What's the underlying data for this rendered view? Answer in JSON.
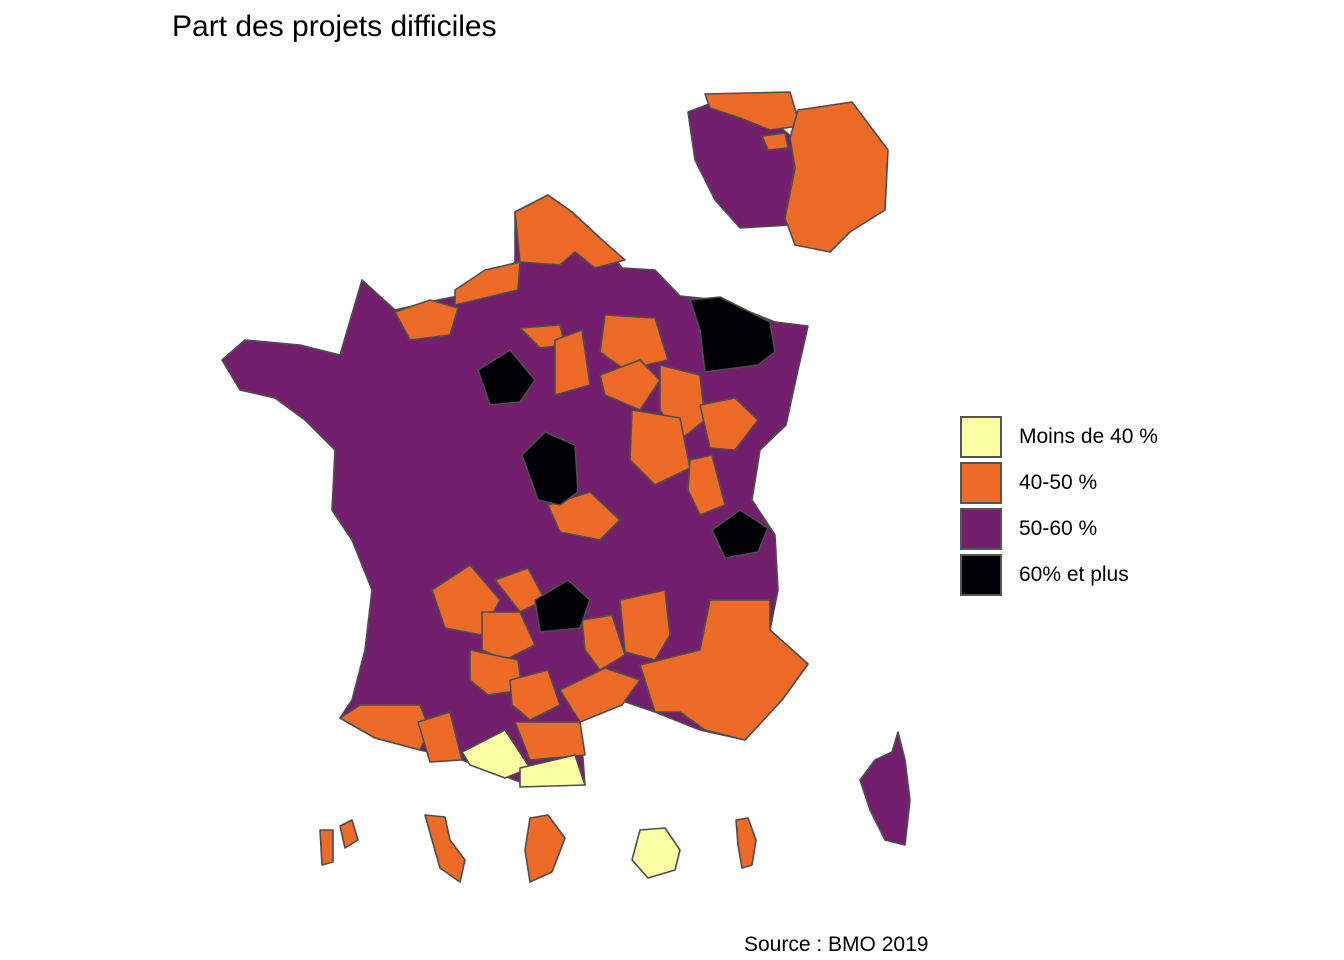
{
  "title": "Part des projets difficiles",
  "source": "Source : BMO 2019",
  "legend": {
    "items": [
      {
        "label": "Moins de 40 %",
        "color": "#fcfea4"
      },
      {
        "label": "40-50 %",
        "color": "#ed6a27"
      },
      {
        "label": "50-60 %",
        "color": "#731f6e"
      },
      {
        "label": "60% et plus",
        "color": "#000005"
      }
    ]
  }
}
